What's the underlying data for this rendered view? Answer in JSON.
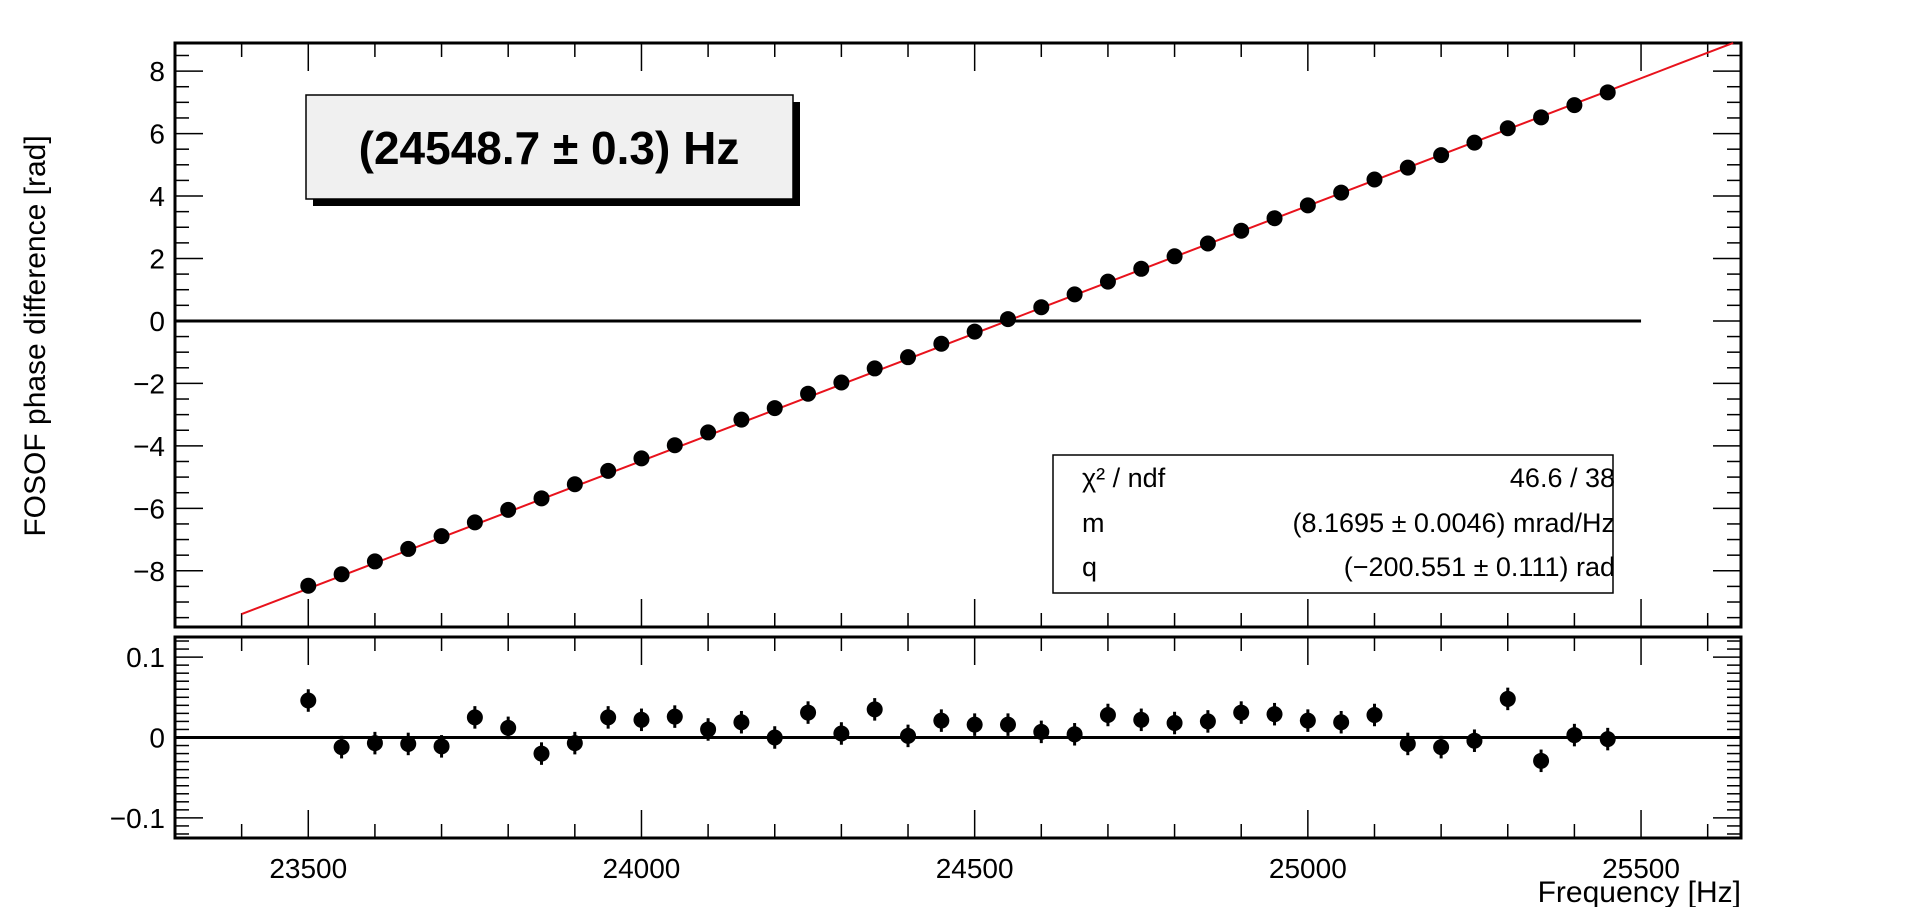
{
  "colors": {
    "fit_line": "#e8121c",
    "markers": "#000000",
    "background": "#ffffff",
    "fit_title_box": "#f0f0f0"
  },
  "chart_data": [
    {
      "type": "scatter",
      "panel": "main",
      "xlabel": "",
      "ylabel": "FOSOF phase difference [rad]",
      "xlim": [
        23300,
        25650
      ],
      "ylim": [
        -9.8,
        8.9
      ],
      "yticks": [
        -8,
        -6,
        -4,
        -2,
        0,
        2,
        4,
        6,
        8
      ],
      "ytick_labels": [
        "−8",
        "−6",
        "−4",
        "−2",
        "0",
        "2",
        "4",
        "6",
        "8"
      ],
      "zero_line": {
        "x_range": [
          23300,
          25500
        ],
        "y": 0
      },
      "x": [
        23500,
        23550,
        23600,
        23650,
        23700,
        23750,
        23800,
        23850,
        23900,
        23950,
        24000,
        24050,
        24100,
        24150,
        24200,
        24250,
        24300,
        24350,
        24400,
        24450,
        24500,
        24550,
        24600,
        24650,
        24700,
        24750,
        24800,
        24850,
        24900,
        24950,
        25000,
        25050,
        25100,
        25150,
        25200,
        25250,
        25300,
        25350,
        25400,
        25450
      ],
      "series": [
        {
          "y": [
            -8.48,
            -8.11,
            -7.7,
            -7.3,
            -6.89,
            -6.45,
            -6.05,
            -5.68,
            -5.23,
            -4.8,
            -4.4,
            -3.98,
            -3.57,
            -3.16,
            -2.79,
            -2.33,
            -1.97,
            -1.52,
            -1.16,
            -0.73,
            -0.34,
            0.06,
            0.44,
            0.85,
            1.26,
            1.67,
            2.07,
            2.48,
            2.89,
            3.29,
            3.7,
            4.11,
            4.53,
            4.91,
            5.31,
            5.71,
            6.17,
            6.52,
            6.91,
            7.32
          ]
        },
        {
          "fit": true,
          "m_mrad_per_Hz": 8.1695,
          "q_rad": -200.551,
          "x_range": [
            23400,
            25650
          ]
        }
      ],
      "annotations": {
        "fit_title": "(24548.7 ± 0.3) Hz",
        "stats": [
          {
            "label": "χ² / ndf",
            "value": "46.6 / 38"
          },
          {
            "label": "m",
            "value": "(8.1695 ± 0.0046) mrad/Hz"
          },
          {
            "label": "q",
            "value": "(−200.551 ± 0.111) rad"
          }
        ]
      }
    },
    {
      "type": "scatter",
      "panel": "residuals",
      "xlabel": "Frequency [Hz]",
      "ylabel": "",
      "xlim": [
        23300,
        25650
      ],
      "ylim": [
        -0.125,
        0.125
      ],
      "xticks": [
        23500,
        24000,
        24500,
        25000,
        25500
      ],
      "xtick_labels": [
        "23500",
        "24000",
        "24500",
        "25000",
        "25500"
      ],
      "yticks": [
        -0.1,
        0,
        0.1
      ],
      "ytick_labels": [
        "−0.1",
        "0",
        "0.1"
      ],
      "zero_line": {
        "x_range": [
          23300,
          25650
        ],
        "y": 0
      },
      "x": [
        23500,
        23550,
        23600,
        23650,
        23700,
        23750,
        23800,
        23850,
        23900,
        23950,
        24000,
        24050,
        24100,
        24150,
        24200,
        24250,
        24300,
        24350,
        24400,
        24450,
        24500,
        24550,
        24600,
        24650,
        24700,
        24750,
        24800,
        24850,
        24900,
        24950,
        25000,
        25050,
        25100,
        25150,
        25200,
        25250,
        25300,
        25350,
        25400,
        25450
      ],
      "series": [
        {
          "y": [
            0.046,
            -0.012,
            -0.007,
            -0.008,
            -0.011,
            0.025,
            0.012,
            -0.02,
            -0.007,
            0.025,
            0.022,
            0.026,
            0.01,
            0.019,
            0.0,
            0.031,
            0.005,
            0.035,
            0.002,
            0.021,
            0.016,
            0.016,
            0.007,
            0.004,
            0.028,
            0.022,
            0.018,
            0.02,
            0.031,
            0.029,
            0.021,
            0.019,
            0.028,
            -0.008,
            -0.012,
            -0.004,
            0.048,
            -0.029,
            0.003,
            -0.002
          ],
          "error": 0.014
        }
      ]
    }
  ]
}
